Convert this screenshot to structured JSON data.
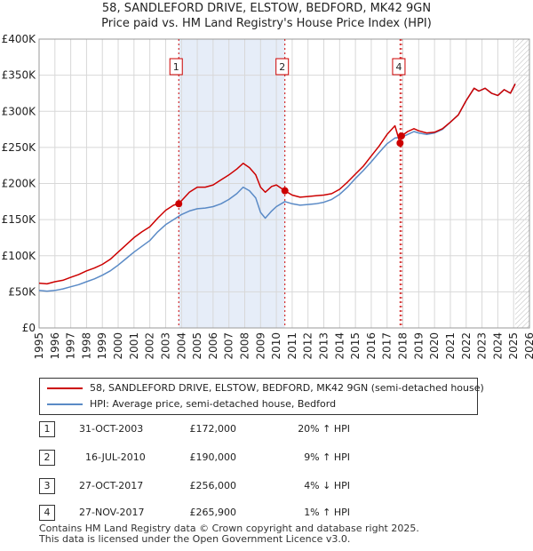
{
  "title_line1": "58, SANDLEFORD DRIVE, ELSTOW, BEDFORD, MK42 9GN",
  "title_line2": "Price paid vs. HM Land Registry's House Price Index (HPI)",
  "colors": {
    "property": "#cc0000",
    "hpi": "#5a8ac6",
    "shade": "#e6edf8",
    "grid": "#d8d8d8",
    "marker_box": "#cc0000"
  },
  "legend": {
    "property_label": "58, SANDLEFORD DRIVE, ELSTOW, BEDFORD, MK42 9GN (semi-detached house)",
    "hpi_label": "HPI: Average price, semi-detached house, Bedford"
  },
  "sales": [
    {
      "num": "1",
      "date": "31-OCT-2003",
      "price": "£172,000",
      "hpi": "20% ↑ HPI"
    },
    {
      "num": "2",
      "date": "16-JUL-2010",
      "price": "£190,000",
      "hpi": "9% ↑ HPI"
    },
    {
      "num": "3",
      "date": "27-OCT-2017",
      "price": "£256,000",
      "hpi": "4% ↓ HPI"
    },
    {
      "num": "4",
      "date": "27-NOV-2017",
      "price": "£265,900",
      "hpi": "1% ↑ HPI"
    }
  ],
  "footer_line1": "Contains HM Land Registry data © Crown copyright and database right 2025.",
  "footer_line2": "This data is licensed under the Open Government Licence v3.0.",
  "chart_data": {
    "type": "line",
    "title": "58, SANDLEFORD DRIVE, ELSTOW, BEDFORD, MK42 9GN",
    "subtitle": "Price paid vs. HM Land Registry's House Price Index (HPI)",
    "xlabel": "",
    "ylabel": "",
    "xlim": [
      1995,
      2026
    ],
    "ylim": [
      0,
      400000
    ],
    "y_ticks": [
      0,
      50000,
      100000,
      150000,
      200000,
      250000,
      300000,
      350000,
      400000
    ],
    "y_tick_labels": [
      "£0",
      "£50K",
      "£100K",
      "£150K",
      "£200K",
      "£250K",
      "£300K",
      "£350K",
      "£400K"
    ],
    "x_ticks": [
      1995,
      1996,
      1997,
      1998,
      1999,
      2000,
      2001,
      2002,
      2003,
      2004,
      2005,
      2006,
      2007,
      2008,
      2009,
      2010,
      2011,
      2012,
      2013,
      2014,
      2015,
      2016,
      2017,
      2018,
      2019,
      2020,
      2021,
      2022,
      2023,
      2024,
      2025,
      2026
    ],
    "x_tick_labels": [
      "1995",
      "1996",
      "1997",
      "1998",
      "1999",
      "2000",
      "2001",
      "2002",
      "2003",
      "2004",
      "2005",
      "2006",
      "2007",
      "2008",
      "2009",
      "2010",
      "2011",
      "2012",
      "2013",
      "2014",
      "2015",
      "2016",
      "2017",
      "2018",
      "2019",
      "2020",
      "2021",
      "2022",
      "2023",
      "2024",
      "2025",
      "2026"
    ],
    "grid": true,
    "shaded_period": [
      2003.83,
      2010.54
    ],
    "future_hatch_start": 2025.1,
    "series": [
      {
        "name": "58, SANDLEFORD DRIVE, ELSTOW, BEDFORD, MK42 9GN (semi-detached house)",
        "x": [
          1995.0,
          1995.5,
          1996.0,
          1996.5,
          1997.0,
          1997.5,
          1998.0,
          1998.5,
          1999.0,
          1999.5,
          2000.0,
          2000.5,
          2001.0,
          2001.5,
          2002.0,
          2002.5,
          2003.0,
          2003.5,
          2003.83,
          2004.5,
          2005.0,
          2005.5,
          2006.0,
          2006.5,
          2007.0,
          2007.5,
          2007.9,
          2008.3,
          2008.7,
          2009.0,
          2009.3,
          2009.7,
          2010.0,
          2010.54,
          2011.0,
          2011.5,
          2012.0,
          2012.5,
          2013.0,
          2013.5,
          2014.0,
          2014.5,
          2015.0,
          2015.5,
          2016.0,
          2016.5,
          2017.0,
          2017.5,
          2017.82,
          2017.91,
          2018.3,
          2018.7,
          2019.0,
          2019.5,
          2020.0,
          2020.5,
          2021.0,
          2021.5,
          2022.0,
          2022.5,
          2022.8,
          2023.2,
          2023.6,
          2024.0,
          2024.4,
          2024.8,
          2025.1
        ],
        "y": [
          62000,
          61000,
          64000,
          66000,
          70000,
          74000,
          79000,
          83000,
          88000,
          95000,
          105000,
          115000,
          125000,
          133000,
          140000,
          152000,
          163000,
          170000,
          172000,
          188000,
          195000,
          195000,
          198000,
          205000,
          212000,
          220000,
          228000,
          222000,
          212000,
          195000,
          188000,
          196000,
          198000,
          190000,
          184000,
          181000,
          182000,
          183000,
          184000,
          186000,
          192000,
          202000,
          213000,
          224000,
          238000,
          252000,
          268000,
          280000,
          256000,
          265900,
          272000,
          276000,
          273000,
          270000,
          271000,
          276000,
          285000,
          295000,
          315000,
          332000,
          328000,
          332000,
          325000,
          322000,
          330000,
          325000,
          338000
        ]
      },
      {
        "name": "HPI: Average price, semi-detached house, Bedford",
        "x": [
          1995.0,
          1995.5,
          1996.0,
          1996.5,
          1997.0,
          1997.5,
          1998.0,
          1998.5,
          1999.0,
          1999.5,
          2000.0,
          2000.5,
          2001.0,
          2001.5,
          2002.0,
          2002.5,
          2003.0,
          2003.5,
          2004.0,
          2004.5,
          2005.0,
          2005.5,
          2006.0,
          2006.5,
          2007.0,
          2007.5,
          2007.9,
          2008.3,
          2008.7,
          2009.0,
          2009.3,
          2009.7,
          2010.0,
          2010.54,
          2011.0,
          2011.5,
          2012.0,
          2012.5,
          2013.0,
          2013.5,
          2014.0,
          2014.5,
          2015.0,
          2015.5,
          2016.0,
          2016.5,
          2017.0,
          2017.5,
          2017.9,
          2018.3,
          2018.7,
          2019.0,
          2019.5,
          2020.0,
          2020.5,
          2021.0,
          2021.5,
          2022.0,
          2022.5,
          2022.8,
          2023.2,
          2023.6,
          2024.0,
          2024.4,
          2024.8,
          2025.1
        ],
        "y": [
          52000,
          51000,
          52000,
          54000,
          57000,
          60000,
          64000,
          68000,
          73000,
          79000,
          87000,
          96000,
          105000,
          113000,
          121000,
          133000,
          143000,
          150000,
          157000,
          162000,
          165000,
          166000,
          168000,
          172000,
          178000,
          186000,
          195000,
          190000,
          180000,
          160000,
          152000,
          162000,
          168000,
          175000,
          172000,
          170000,
          171000,
          172000,
          174000,
          178000,
          185000,
          195000,
          207000,
          218000,
          230000,
          243000,
          255000,
          263000,
          264000,
          268000,
          272000,
          270000,
          268000,
          270000,
          275000,
          285000,
          295000,
          315000,
          332000,
          328000,
          332000,
          325000,
          322000,
          330000,
          325000,
          338000
        ]
      }
    ],
    "transactions": [
      {
        "label": "1",
        "x": 2003.83,
        "y": 172000
      },
      {
        "label": "2",
        "x": 2010.54,
        "y": 190000
      },
      {
        "label": "3",
        "x": 2017.82,
        "y": 256000
      },
      {
        "label": "4",
        "x": 2017.91,
        "y": 265900
      }
    ],
    "marker_boxes_shown": [
      "1",
      "2",
      "4"
    ]
  }
}
